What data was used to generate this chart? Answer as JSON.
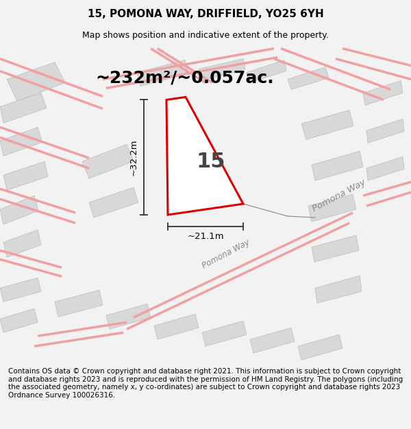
{
  "title": "15, POMONA WAY, DRIFFIELD, YO25 6YH",
  "subtitle": "Map shows position and indicative extent of the property.",
  "area_text": "~232m²/~0.057ac.",
  "plot_number": "15",
  "dim_width": "~21.1m",
  "dim_height": "~32.2m",
  "footer": "Contains OS data © Crown copyright and database right 2021. This information is subject to Crown copyright and database rights 2023 and is reproduced with the permission of HM Land Registry. The polygons (including the associated geometry, namely x, y co-ordinates) are subject to Crown copyright and database rights 2023 Ordnance Survey 100026316.",
  "bg_color": "#f2f2f2",
  "map_bg": "#eeeeee",
  "road_color": "#f0a0a0",
  "building_color": "#d8d8d8",
  "building_edge": "#cccccc",
  "highlight_color": "#dd0000",
  "road_label": "Pomona Way",
  "pomona_label2": "Pomona Way",
  "title_fontsize": 11,
  "subtitle_fontsize": 9,
  "footer_fontsize": 7.5,
  "area_fontsize": 18,
  "number_fontsize": 22,
  "dim_fontsize": 9.5
}
